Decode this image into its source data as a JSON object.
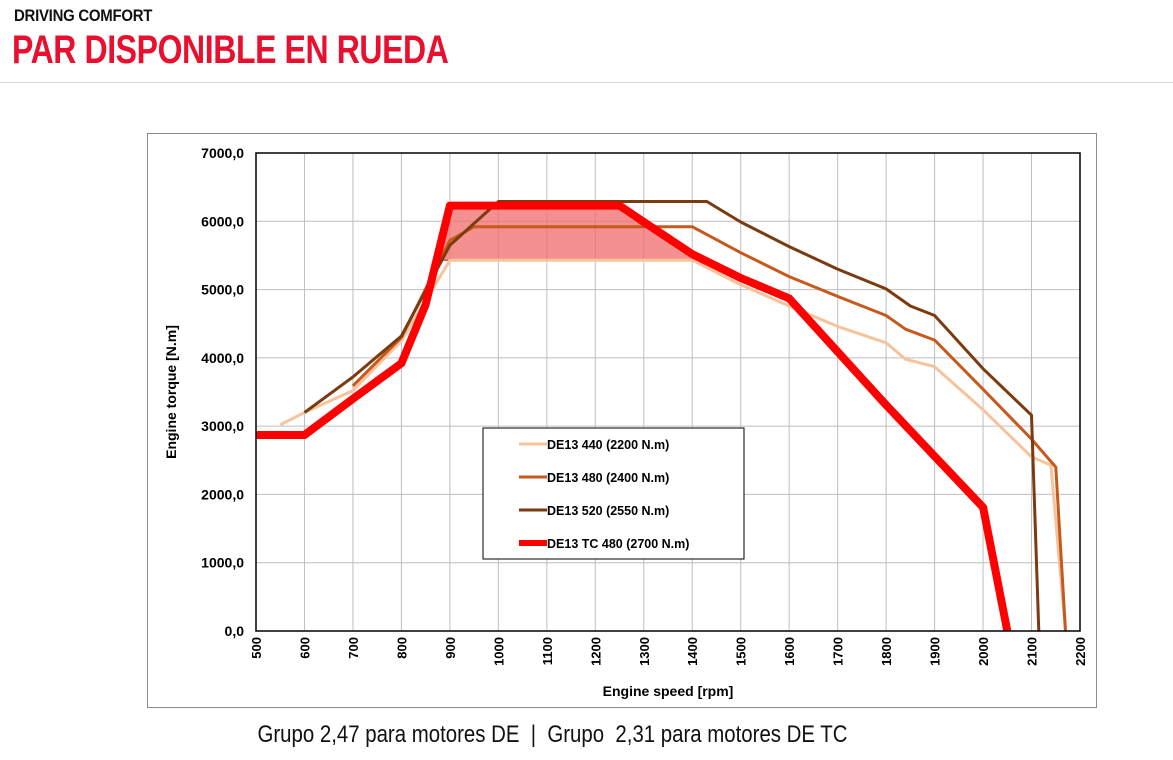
{
  "header": {
    "kicker": "DRIVING COMFORT",
    "title": "PAR DISPONIBLE EN RUEDA"
  },
  "caption": "Grupo 2,47 para motores DE  |  Grupo  2,31 para motores DE TC",
  "colors": {
    "title_red": "#e8102e",
    "de13_440": "#f6c39d",
    "de13_480": "#c65a1e",
    "de13_520": "#7a3b10",
    "de13_tc_480": "#ff0000",
    "highlight_fill": "#f26b6b"
  },
  "chart_data": {
    "type": "line",
    "title": "",
    "xlabel": "Engine speed [rpm]",
    "ylabel": "Engine torque [N.m]",
    "xlim": [
      500,
      2200
    ],
    "ylim": [
      0,
      7000
    ],
    "x_ticks": [
      "500",
      "600",
      "700",
      "800",
      "900",
      "1000",
      "1100",
      "1200",
      "1300",
      "1400",
      "1500",
      "1600",
      "1700",
      "1800",
      "1900",
      "2000",
      "2100",
      "2200"
    ],
    "y_ticks": [
      "0,0",
      "1000,0",
      "2000,0",
      "3000,0",
      "4000,0",
      "5000,0",
      "6000,0",
      "7000,0"
    ],
    "grid": true,
    "legend_position": "center-left",
    "series": [
      {
        "name": "DE13 440 (2200 N.m)",
        "color": "#f6c39d",
        "width": 3,
        "points": [
          [
            550,
            3020
          ],
          [
            600,
            3200
          ],
          [
            700,
            3520
          ],
          [
            800,
            4250
          ],
          [
            900,
            5430
          ],
          [
            950,
            5430
          ],
          [
            1000,
            5430
          ],
          [
            1100,
            5430
          ],
          [
            1200,
            5430
          ],
          [
            1300,
            5430
          ],
          [
            1400,
            5430
          ],
          [
            1500,
            5070
          ],
          [
            1600,
            4760
          ],
          [
            1700,
            4460
          ],
          [
            1800,
            4220
          ],
          [
            1840,
            3980
          ],
          [
            1900,
            3870
          ],
          [
            2000,
            3240
          ],
          [
            2100,
            2550
          ],
          [
            2140,
            2430
          ],
          [
            2170,
            0
          ]
        ]
      },
      {
        "name": "DE13 480 (2400 N.m)",
        "color": "#c65a1e",
        "width": 3,
        "points": [
          [
            700,
            3590
          ],
          [
            800,
            4300
          ],
          [
            900,
            5720
          ],
          [
            950,
            5920
          ],
          [
            1000,
            5920
          ],
          [
            1100,
            5920
          ],
          [
            1200,
            5920
          ],
          [
            1300,
            5920
          ],
          [
            1400,
            5920
          ],
          [
            1500,
            5540
          ],
          [
            1600,
            5190
          ],
          [
            1700,
            4900
          ],
          [
            1800,
            4620
          ],
          [
            1840,
            4420
          ],
          [
            1900,
            4260
          ],
          [
            2000,
            3540
          ],
          [
            2100,
            2810
          ],
          [
            2150,
            2400
          ],
          [
            2170,
            0
          ]
        ]
      },
      {
        "name": "DE13 520 (2550 N.m)",
        "color": "#7a3b10",
        "width": 3,
        "points": [
          [
            600,
            3200
          ],
          [
            700,
            3720
          ],
          [
            800,
            4320
          ],
          [
            900,
            5650
          ],
          [
            1000,
            6290
          ],
          [
            1100,
            6290
          ],
          [
            1200,
            6290
          ],
          [
            1300,
            6290
          ],
          [
            1400,
            6290
          ],
          [
            1430,
            6290
          ],
          [
            1500,
            5990
          ],
          [
            1600,
            5630
          ],
          [
            1700,
            5300
          ],
          [
            1800,
            5010
          ],
          [
            1850,
            4760
          ],
          [
            1900,
            4620
          ],
          [
            2000,
            3840
          ],
          [
            2100,
            3160
          ],
          [
            2115,
            0
          ]
        ]
      },
      {
        "name": "DE13 TC 480 (2700 N.m)",
        "color": "#ff0000",
        "width": 8,
        "points": [
          [
            500,
            2870
          ],
          [
            600,
            2870
          ],
          [
            700,
            3400
          ],
          [
            800,
            3920
          ],
          [
            850,
            4780
          ],
          [
            900,
            6230
          ],
          [
            1000,
            6230
          ],
          [
            1100,
            6230
          ],
          [
            1200,
            6230
          ],
          [
            1250,
            6230
          ],
          [
            1300,
            5990
          ],
          [
            1400,
            5520
          ],
          [
            1500,
            5170
          ],
          [
            1600,
            4870
          ],
          [
            1700,
            4090
          ],
          [
            1800,
            3310
          ],
          [
            1900,
            2560
          ],
          [
            2000,
            1810
          ],
          [
            2050,
            0
          ]
        ]
      }
    ],
    "highlight_band": {
      "y_low": 5430,
      "x_start": 875,
      "x_end": 1430
    }
  }
}
